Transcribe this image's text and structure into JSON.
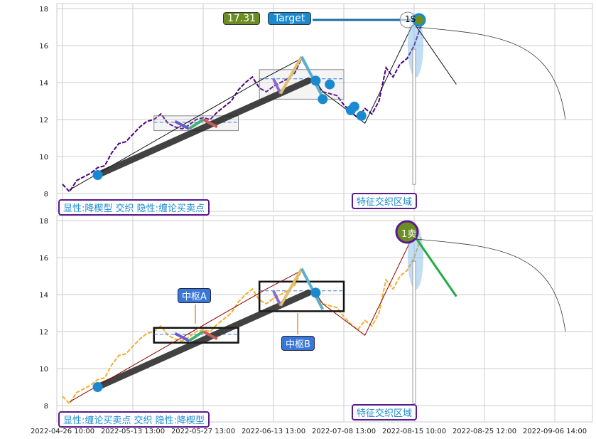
{
  "chart_data": [
    {
      "type": "line",
      "panel": "top",
      "ylim": [
        7.2,
        18.2
      ],
      "yticks": [
        8,
        10,
        12,
        14,
        16,
        18
      ],
      "xticks": [
        "2022-04-26 10:00",
        "2022-05-13 13:00",
        "2022-05-27 13:00",
        "2022-06-13 13:00",
        "2022-07-08 13:00",
        "2022-08-15 10:00",
        "2022-08-25 12:00",
        "2022-09-06 14:00"
      ],
      "series": [
        {
          "color": "#4b0082",
          "values": [
            8.5,
            8.1,
            8.7,
            8.9,
            9.1,
            9.4,
            9.5,
            10.2,
            10.7,
            10.8,
            11.2,
            11.6,
            11.9,
            12.0,
            12.3,
            11.8,
            11.6,
            11.5,
            11.7,
            12.0,
            12.1,
            12.0,
            12.4,
            12.7,
            13.0,
            13.6,
            14.0,
            14.3,
            13.7,
            13.5,
            13.8,
            14.0,
            14.2,
            14.5,
            15.3,
            14.6,
            14.0,
            13.5,
            13.4,
            13.3,
            12.8,
            12.4,
            12.1,
            12.6,
            12.3,
            13.0,
            14.8,
            14.3,
            15.0,
            15.3,
            16.0,
            17.1
          ]
        }
      ],
      "annotations": {
        "price_label": "17.31",
        "target_label": "Target",
        "signal": "1S",
        "pattern_label": "显性:降楔型 交织 隐性:缠论买卖点",
        "zone_label": "特征交织区域"
      }
    },
    {
      "type": "line",
      "panel": "bottom",
      "ylim": [
        7.2,
        18.2
      ],
      "yticks": [
        8,
        10,
        12,
        14,
        16,
        18
      ],
      "series": [
        {
          "color": "#f0b030",
          "values": [
            8.5,
            8.1,
            8.7,
            8.9,
            9.1,
            9.4,
            9.5,
            10.2,
            10.7,
            10.8,
            11.2,
            11.6,
            11.9,
            12.0,
            12.3,
            11.8,
            11.6,
            11.5,
            11.7,
            12.0,
            12.1,
            12.0,
            12.4,
            12.7,
            13.0,
            13.6,
            14.0,
            14.3,
            13.7,
            13.5,
            13.8,
            14.0,
            14.2,
            14.5,
            15.3,
            14.6,
            14.0,
            13.5,
            13.4,
            13.3,
            12.8,
            12.4,
            12.1,
            12.6,
            12.3,
            13.0,
            14.8,
            14.3,
            15.0,
            15.3,
            16.0,
            17.1
          ]
        }
      ],
      "annotations": {
        "signal": "1卖",
        "pattern_label": "显性:缠论买卖点 交织 隐性:降楔型",
        "zone_label": "特征交织区域",
        "pivot_a": "中枢A",
        "pivot_b": "中枢B"
      }
    }
  ],
  "colors": {
    "price_box": "#6b8e23",
    "target": "#1a8ad0",
    "label_border": "#5a1a8a",
    "pivot_label": "#3a78d8"
  }
}
